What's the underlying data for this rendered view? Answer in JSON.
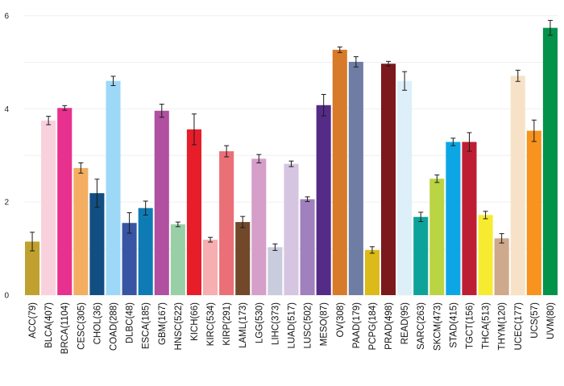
{
  "chart_data": {
    "type": "bar",
    "title": "",
    "xlabel": "",
    "ylabel": "",
    "ylim": [
      0,
      6.2
    ],
    "yticks": [
      0,
      2,
      4,
      6
    ],
    "grid": true,
    "categories": [
      "ACC(79)",
      "BLCA(407)",
      "BRCA(1104)",
      "CESC(305)",
      "CHOL(36)",
      "COAD(288)",
      "DLBC(48)",
      "ESCA(185)",
      "GBM(167)",
      "HNSC(522)",
      "KICH(66)",
      "KIRC(534)",
      "KIRP(291)",
      "LAML(173)",
      "LGG(530)",
      "LIHC(373)",
      "LUAD(517)",
      "LUSC(502)",
      "MESO(87)",
      "OV(308)",
      "PAAD(179)",
      "PCPG(184)",
      "PRAD(498)",
      "READ(95)",
      "SARC(263)",
      "SKCM(473)",
      "STAD(415)",
      "TGCT(156)",
      "THCA(513)",
      "THYM(120)",
      "UCEC(177)",
      "UCS(57)",
      "UVM(80)"
    ],
    "values": [
      1.15,
      3.75,
      4.02,
      2.73,
      2.19,
      4.6,
      1.55,
      1.87,
      3.96,
      1.52,
      3.56,
      1.19,
      3.09,
      1.57,
      2.93,
      1.03,
      2.82,
      2.06,
      4.08,
      5.27,
      5.01,
      0.97,
      4.97,
      4.6,
      1.68,
      2.5,
      3.29,
      3.29,
      1.72,
      1.22,
      4.71,
      3.53,
      5.74
    ],
    "errors": [
      0.2,
      0.09,
      0.05,
      0.11,
      0.3,
      0.1,
      0.22,
      0.15,
      0.14,
      0.05,
      0.33,
      0.05,
      0.12,
      0.12,
      0.09,
      0.07,
      0.06,
      0.05,
      0.23,
      0.06,
      0.11,
      0.07,
      0.05,
      0.2,
      0.1,
      0.08,
      0.08,
      0.2,
      0.08,
      0.1,
      0.12,
      0.23,
      0.16
    ],
    "colors": [
      "#C0A12F",
      "#F9D1DD",
      "#E8308E",
      "#F3AE62",
      "#124E82",
      "#9DD8F7",
      "#3755A3",
      "#0F7BB5",
      "#B14FA0",
      "#98CFA7",
      "#E71E2A",
      "#F6AEB1",
      "#EA6F77",
      "#71492A",
      "#D59FC9",
      "#C9CCDD",
      "#D5C5E1",
      "#A180BE",
      "#542B86",
      "#D77A29",
      "#6F7DA4",
      "#DCBA19",
      "#7B191C",
      "#DDEFF9",
      "#0EA39A",
      "#BAD443",
      "#0DA6E5",
      "#BE1E33",
      "#F6EB30",
      "#CFA98C",
      "#F7E2C8",
      "#F7931E",
      "#03924A"
    ]
  }
}
